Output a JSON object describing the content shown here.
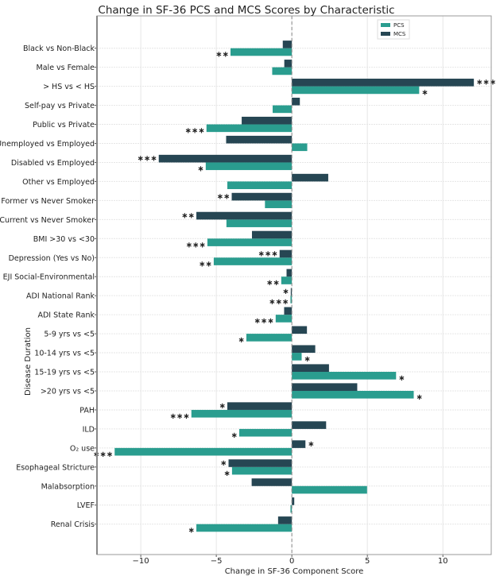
{
  "chart_data": {
    "type": "bar",
    "orientation": "horizontal",
    "title": "Change in SF-36 PCS and MCS Scores by Characteristic",
    "xlabel": "Change in SF-36 Component Score",
    "ylabel": "Disease Duration",
    "xlim": [
      -12.9,
      13.2
    ],
    "xticks": [
      -10,
      -5,
      0,
      5,
      10
    ],
    "xtick_labels": [
      "−10",
      "−5",
      "0",
      "5",
      "10"
    ],
    "grid": true,
    "zero_line": "dashed",
    "legend_position": "top-right",
    "categories": [
      "Black vs Non-Black",
      "Male vs Female",
      "> HS vs < HS",
      "Self-pay vs Private",
      "Public vs Private",
      "Unemployed vs Employed",
      "Disabled vs Employed",
      "Other vs Employed",
      "Former vs Never Smoker",
      "Current vs Never Smoker",
      "BMI >30 vs <30",
      "Depression (Yes vs No)",
      "EJI Social-Environmental",
      "ADI National Rank",
      "ADI State Rank",
      "5-9 yrs vs <5",
      "10-14 yrs vs <5",
      "15-19 yrs vs <5",
      ">20 yrs vs <5",
      "PAH",
      "ILD",
      "O₂ use",
      "Esophageal Stricture",
      "Malabsorption",
      "LVEF",
      "Renal Crisis"
    ],
    "series": [
      {
        "name": "PCS",
        "color": "#2a9d8f",
        "values": [
          -4.06,
          -1.3,
          8.43,
          -1.27,
          -5.65,
          1.02,
          -5.7,
          -4.27,
          -1.78,
          -4.33,
          -5.59,
          -5.17,
          -0.7,
          -0.09,
          -1.07,
          -3.01,
          0.65,
          6.9,
          8.07,
          -6.65,
          -3.48,
          -11.73,
          -3.96,
          4.98,
          -0.09,
          -6.32
        ],
        "significance": [
          "**",
          "",
          "*",
          "",
          "***",
          "",
          "*",
          "",
          "",
          "",
          "***",
          "**",
          "**",
          "***",
          "***",
          "*",
          "*",
          "*",
          "*",
          "***",
          "*",
          "***",
          "*",
          "",
          "",
          "*"
        ]
      },
      {
        "name": "MCS",
        "color": "#264653",
        "values": [
          -0.6,
          -0.5,
          12.05,
          0.53,
          -3.32,
          -4.35,
          -8.81,
          2.41,
          -3.98,
          -6.32,
          -2.64,
          -0.81,
          -0.35,
          -0.07,
          -0.51,
          1.0,
          1.55,
          2.46,
          4.33,
          -4.27,
          2.27,
          0.9,
          -4.19,
          -2.66,
          0.16,
          -0.91
        ],
        "significance": [
          "",
          "",
          "***",
          "",
          "",
          "",
          "***",
          "",
          "**",
          "**",
          "",
          "***",
          "",
          "*",
          "",
          "",
          "",
          "",
          "",
          "*",
          "",
          "*",
          "*",
          "",
          "",
          ""
        ]
      }
    ]
  }
}
